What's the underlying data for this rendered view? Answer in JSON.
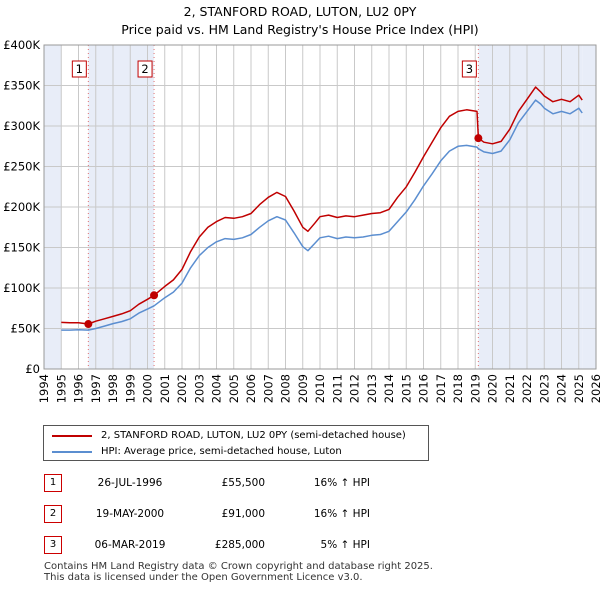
{
  "chart_data": {
    "type": "line",
    "title": "2, STANFORD ROAD, LUTON, LU2 0PY",
    "subtitle": "Price paid vs. HM Land Registry's House Price Index (HPI)",
    "x_ticks": [
      "1994",
      "1995",
      "1996",
      "1997",
      "1998",
      "1999",
      "2000",
      "2001",
      "2002",
      "2003",
      "2004",
      "2005",
      "2006",
      "2007",
      "2008",
      "2009",
      "2010",
      "2011",
      "2012",
      "2013",
      "2014",
      "2015",
      "2016",
      "2017",
      "2018",
      "2019",
      "2020",
      "2021",
      "2022",
      "2023",
      "2024",
      "2025",
      "2026"
    ],
    "y_ticks": [
      "£0",
      "£50K",
      "£100K",
      "£150K",
      "£200K",
      "£250K",
      "£300K",
      "£350K",
      "£400K"
    ],
    "xlim": [
      1994,
      2026
    ],
    "ylim": [
      0,
      400000
    ],
    "grid": true,
    "shaded_ranges": [
      [
        1994,
        1995
      ],
      [
        1996.57,
        2000.38
      ],
      [
        2019.18,
        2025.2
      ],
      [
        2025.2,
        2026
      ]
    ],
    "series": [
      {
        "name": "2, STANFORD ROAD, LUTON, LU2 0PY (semi-detached house)",
        "color": "#c00000",
        "x": [
          1995.0,
          1995.5,
          1996.0,
          1996.57,
          1997.0,
          1997.5,
          1998.0,
          1998.5,
          1999.0,
          1999.5,
          2000.0,
          2000.38,
          2001.0,
          2001.5,
          2002.0,
          2002.5,
          2003.0,
          2003.5,
          2004.0,
          2004.5,
          2005.0,
          2005.5,
          2006.0,
          2006.5,
          2007.0,
          2007.5,
          2008.0,
          2008.5,
          2009.0,
          2009.3,
          2009.7,
          2010.0,
          2010.5,
          2011.0,
          2011.5,
          2012.0,
          2012.5,
          2013.0,
          2013.5,
          2014.0,
          2014.5,
          2015.0,
          2015.5,
          2016.0,
          2016.5,
          2017.0,
          2017.5,
          2018.0,
          2018.5,
          2019.1,
          2019.18,
          2019.5,
          2020.0,
          2020.5,
          2021.0,
          2021.5,
          2022.0,
          2022.5,
          2022.8,
          2023.0,
          2023.5,
          2024.0,
          2024.5,
          2025.0,
          2025.2
        ],
        "values": [
          57500,
          57000,
          57000,
          55500,
          59000,
          62000,
          65000,
          68000,
          72000,
          80000,
          86000,
          91000,
          102000,
          110000,
          123000,
          145000,
          163000,
          175000,
          182000,
          187000,
          186000,
          188000,
          192000,
          203000,
          212000,
          218000,
          213000,
          195000,
          175000,
          170000,
          180000,
          188000,
          190000,
          187000,
          189000,
          188000,
          190000,
          192000,
          193000,
          197000,
          212000,
          225000,
          243000,
          262000,
          280000,
          298000,
          312000,
          318000,
          320000,
          318000,
          285000,
          280000,
          278000,
          281000,
          296000,
          318000,
          333000,
          348000,
          342000,
          337000,
          330000,
          333000,
          330000,
          338000,
          332000
        ]
      },
      {
        "name": "HPI: Average price, semi-detached house, Luton",
        "color": "#5b8ed0",
        "x": [
          1995.0,
          1995.5,
          1996.0,
          1996.57,
          1997.0,
          1997.5,
          1998.0,
          1998.5,
          1999.0,
          1999.5,
          2000.0,
          2000.38,
          2001.0,
          2001.5,
          2002.0,
          2002.5,
          2003.0,
          2003.5,
          2004.0,
          2004.5,
          2005.0,
          2005.5,
          2006.0,
          2006.5,
          2007.0,
          2007.5,
          2008.0,
          2008.5,
          2009.0,
          2009.3,
          2009.7,
          2010.0,
          2010.5,
          2011.0,
          2011.5,
          2012.0,
          2012.5,
          2013.0,
          2013.5,
          2014.0,
          2014.5,
          2015.0,
          2015.5,
          2016.0,
          2016.5,
          2017.0,
          2017.5,
          2018.0,
          2018.5,
          2019.1,
          2019.18,
          2019.5,
          2020.0,
          2020.5,
          2021.0,
          2021.5,
          2022.0,
          2022.5,
          2022.8,
          2023.0,
          2023.5,
          2024.0,
          2024.5,
          2025.0,
          2025.2
        ],
        "values": [
          48000,
          48000,
          48500,
          48000,
          50000,
          53000,
          56000,
          58500,
          62000,
          69000,
          74000,
          78000,
          88000,
          95000,
          106000,
          125000,
          140000,
          150000,
          157000,
          161000,
          160000,
          162000,
          166000,
          175000,
          183000,
          188000,
          184000,
          168000,
          151000,
          146000,
          155000,
          162000,
          164000,
          161000,
          163000,
          162000,
          163000,
          165000,
          166000,
          170000,
          182000,
          194000,
          209000,
          226000,
          241000,
          257000,
          269000,
          275000,
          276000,
          274000,
          272000,
          268000,
          266000,
          269000,
          283000,
          304000,
          318000,
          332000,
          327000,
          322000,
          315000,
          318000,
          315000,
          322000,
          316000
        ]
      }
    ],
    "annotations": [
      {
        "label": "1",
        "x": 1996.57,
        "value": 55500
      },
      {
        "label": "2",
        "x": 2000.38,
        "value": 91000
      },
      {
        "label": "3",
        "x": 2019.18,
        "value": 285000
      }
    ]
  },
  "legend": {
    "items": [
      {
        "label": "2, STANFORD ROAD, LUTON, LU2 0PY (semi-detached house)",
        "color": "#c00000"
      },
      {
        "label": "HPI: Average price, semi-detached house, Luton",
        "color": "#5b8ed0"
      }
    ]
  },
  "sales": [
    {
      "num": "1",
      "date": "26-JUL-1996",
      "price": "£55,500",
      "hpi": "16% ↑ HPI"
    },
    {
      "num": "2",
      "date": "19-MAY-2000",
      "price": "£91,000",
      "hpi": "16% ↑ HPI"
    },
    {
      "num": "3",
      "date": "06-MAR-2019",
      "price": "£285,000",
      "hpi": "5% ↑ HPI"
    }
  ],
  "footer": {
    "line1": "Contains HM Land Registry data © Crown copyright and database right 2025.",
    "line2": "This data is licensed under the Open Government Licence v3.0."
  }
}
